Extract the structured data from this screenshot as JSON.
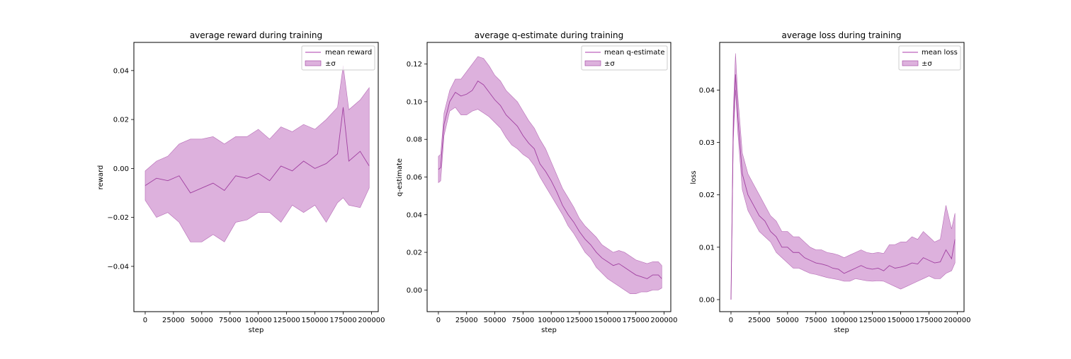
{
  "colors": {
    "line": "#a040a0",
    "band": "#c77dc7",
    "axis": "#000000"
  },
  "chart_data": [
    {
      "type": "line",
      "title": "average reward during training",
      "xlabel": "step",
      "ylabel": "reward",
      "xlim": [
        -10000,
        206000
      ],
      "ylim": [
        -0.0585,
        0.0515
      ],
      "xticks": [
        0,
        25000,
        50000,
        75000,
        100000,
        125000,
        150000,
        175000,
        200000
      ],
      "xtick_labels": [
        "0",
        "25000",
        "50000",
        "75000",
        "100000",
        "125000",
        "150000",
        "175000",
        "200000"
      ],
      "yticks": [
        -0.04,
        -0.02,
        0.0,
        0.02,
        0.04
      ],
      "ytick_labels": [
        "−0.04",
        "−0.02",
        "0.00",
        "0.02",
        "0.04"
      ],
      "legend": {
        "placement": "top-right",
        "line_label": "mean reward",
        "band_label": "±σ"
      },
      "series": [
        {
          "name": "mean reward",
          "x": [
            0,
            10000,
            20000,
            30000,
            40000,
            50000,
            60000,
            70000,
            80000,
            90000,
            100000,
            110000,
            120000,
            130000,
            140000,
            150000,
            160000,
            170000,
            175000,
            180000,
            190000,
            198000
          ],
          "mean": [
            -0.007,
            -0.004,
            -0.005,
            -0.003,
            -0.01,
            -0.008,
            -0.006,
            -0.009,
            -0.003,
            -0.004,
            -0.002,
            -0.005,
            0.001,
            -0.001,
            0.003,
            0.0,
            0.002,
            0.006,
            0.025,
            0.003,
            0.007,
            0.001
          ],
          "lower": [
            -0.013,
            -0.02,
            -0.018,
            -0.022,
            -0.03,
            -0.03,
            -0.027,
            -0.03,
            -0.022,
            -0.021,
            -0.018,
            -0.018,
            -0.022,
            -0.015,
            -0.018,
            -0.015,
            -0.022,
            -0.014,
            -0.012,
            -0.015,
            -0.016,
            -0.008
          ],
          "upper": [
            -0.001,
            0.003,
            0.005,
            0.01,
            0.012,
            0.012,
            0.013,
            0.01,
            0.013,
            0.013,
            0.016,
            0.012,
            0.017,
            0.015,
            0.018,
            0.016,
            0.02,
            0.025,
            0.042,
            0.024,
            0.028,
            0.033
          ]
        }
      ]
    },
    {
      "type": "line",
      "title": "average q-estimate during training",
      "xlabel": "step",
      "ylabel": "q-estimate",
      "xlim": [
        -10000,
        206000
      ],
      "ylim": [
        -0.0115,
        0.1315
      ],
      "xticks": [
        0,
        25000,
        50000,
        75000,
        100000,
        125000,
        150000,
        175000,
        200000
      ],
      "xtick_labels": [
        "0",
        "25000",
        "50000",
        "75000",
        "100000",
        "125000",
        "150000",
        "175000",
        "200000"
      ],
      "yticks": [
        0.0,
        0.02,
        0.04,
        0.06,
        0.08,
        0.1,
        0.12
      ],
      "ytick_labels": [
        "0.00",
        "0.02",
        "0.04",
        "0.06",
        "0.08",
        "0.10",
        "0.12"
      ],
      "legend": {
        "placement": "top-right",
        "line_label": "mean q-estimate",
        "band_label": "±σ"
      },
      "series": [
        {
          "name": "mean q-estimate",
          "x": [
            0,
            2000,
            5000,
            10000,
            15000,
            20000,
            25000,
            30000,
            35000,
            40000,
            45000,
            50000,
            55000,
            60000,
            65000,
            70000,
            75000,
            80000,
            85000,
            90000,
            95000,
            100000,
            105000,
            110000,
            115000,
            120000,
            125000,
            130000,
            135000,
            140000,
            145000,
            150000,
            155000,
            160000,
            165000,
            170000,
            175000,
            180000,
            185000,
            190000,
            195000,
            198000
          ],
          "mean": [
            0.064,
            0.065,
            0.088,
            0.1,
            0.105,
            0.103,
            0.104,
            0.106,
            0.111,
            0.109,
            0.105,
            0.101,
            0.098,
            0.093,
            0.09,
            0.087,
            0.082,
            0.078,
            0.075,
            0.067,
            0.063,
            0.058,
            0.052,
            0.045,
            0.04,
            0.036,
            0.031,
            0.027,
            0.024,
            0.02,
            0.017,
            0.015,
            0.013,
            0.014,
            0.012,
            0.01,
            0.008,
            0.007,
            0.006,
            0.008,
            0.008,
            0.006
          ],
          "lower": [
            0.057,
            0.058,
            0.082,
            0.095,
            0.097,
            0.093,
            0.093,
            0.095,
            0.096,
            0.094,
            0.092,
            0.089,
            0.086,
            0.081,
            0.077,
            0.075,
            0.072,
            0.07,
            0.066,
            0.06,
            0.055,
            0.05,
            0.045,
            0.04,
            0.034,
            0.03,
            0.025,
            0.02,
            0.017,
            0.012,
            0.009,
            0.006,
            0.004,
            0.002,
            0.0,
            -0.002,
            -0.002,
            -0.001,
            -0.001,
            0.0,
            0.0,
            0.001
          ],
          "upper": [
            0.071,
            0.072,
            0.094,
            0.106,
            0.112,
            0.112,
            0.116,
            0.12,
            0.124,
            0.123,
            0.119,
            0.114,
            0.111,
            0.106,
            0.103,
            0.1,
            0.095,
            0.09,
            0.086,
            0.08,
            0.075,
            0.068,
            0.061,
            0.054,
            0.049,
            0.044,
            0.038,
            0.034,
            0.031,
            0.028,
            0.024,
            0.022,
            0.02,
            0.021,
            0.02,
            0.018,
            0.016,
            0.015,
            0.014,
            0.015,
            0.015,
            0.013
          ]
        }
      ]
    },
    {
      "type": "line",
      "title": "average loss during training",
      "xlabel": "step",
      "ylabel": "loss",
      "xlim": [
        -10000,
        206000
      ],
      "ylim": [
        -0.0023,
        0.0491
      ],
      "xticks": [
        0,
        25000,
        50000,
        75000,
        100000,
        125000,
        150000,
        175000,
        200000
      ],
      "xtick_labels": [
        "0",
        "25000",
        "50000",
        "75000",
        "100000",
        "125000",
        "150000",
        "175000",
        "200000"
      ],
      "yticks": [
        0.0,
        0.01,
        0.02,
        0.03,
        0.04
      ],
      "ytick_labels": [
        "0.00",
        "0.01",
        "0.02",
        "0.03",
        "0.04"
      ],
      "legend": {
        "placement": "top-right",
        "line_label": "mean loss",
        "band_label": "±σ"
      },
      "series": [
        {
          "name": "mean loss",
          "x": [
            0,
            2000,
            4000,
            6000,
            10000,
            15000,
            20000,
            25000,
            30000,
            35000,
            40000,
            45000,
            50000,
            55000,
            60000,
            65000,
            70000,
            75000,
            80000,
            85000,
            90000,
            95000,
            100000,
            105000,
            110000,
            115000,
            120000,
            125000,
            130000,
            135000,
            140000,
            145000,
            150000,
            155000,
            160000,
            165000,
            170000,
            175000,
            180000,
            185000,
            190000,
            195000,
            198000
          ],
          "mean": [
            0.0,
            0.032,
            0.043,
            0.035,
            0.024,
            0.02,
            0.018,
            0.016,
            0.015,
            0.013,
            0.012,
            0.01,
            0.01,
            0.009,
            0.009,
            0.008,
            0.0075,
            0.007,
            0.0068,
            0.0065,
            0.006,
            0.0058,
            0.005,
            0.0055,
            0.006,
            0.0065,
            0.006,
            0.0058,
            0.006,
            0.0055,
            0.0065,
            0.006,
            0.0062,
            0.0065,
            0.007,
            0.0068,
            0.008,
            0.0075,
            0.007,
            0.0072,
            0.0095,
            0.0078,
            0.0115
          ],
          "lower": [
            0.0,
            0.03,
            0.04,
            0.032,
            0.021,
            0.017,
            0.015,
            0.013,
            0.012,
            0.011,
            0.009,
            0.008,
            0.007,
            0.006,
            0.006,
            0.0055,
            0.005,
            0.0048,
            0.0045,
            0.0042,
            0.004,
            0.0038,
            0.0035,
            0.0035,
            0.004,
            0.0038,
            0.0036,
            0.0035,
            0.0036,
            0.0035,
            0.003,
            0.0025,
            0.002,
            0.0025,
            0.003,
            0.0035,
            0.004,
            0.0045,
            0.004,
            0.004,
            0.005,
            0.0055,
            0.007
          ],
          "upper": [
            0.0,
            0.036,
            0.047,
            0.039,
            0.028,
            0.024,
            0.022,
            0.02,
            0.018,
            0.016,
            0.015,
            0.013,
            0.013,
            0.012,
            0.012,
            0.011,
            0.01,
            0.0095,
            0.0095,
            0.009,
            0.0088,
            0.0085,
            0.008,
            0.0085,
            0.009,
            0.0095,
            0.009,
            0.0088,
            0.009,
            0.0088,
            0.0105,
            0.0105,
            0.011,
            0.011,
            0.012,
            0.0115,
            0.013,
            0.012,
            0.011,
            0.0115,
            0.018,
            0.0135,
            0.0165
          ]
        }
      ]
    }
  ]
}
